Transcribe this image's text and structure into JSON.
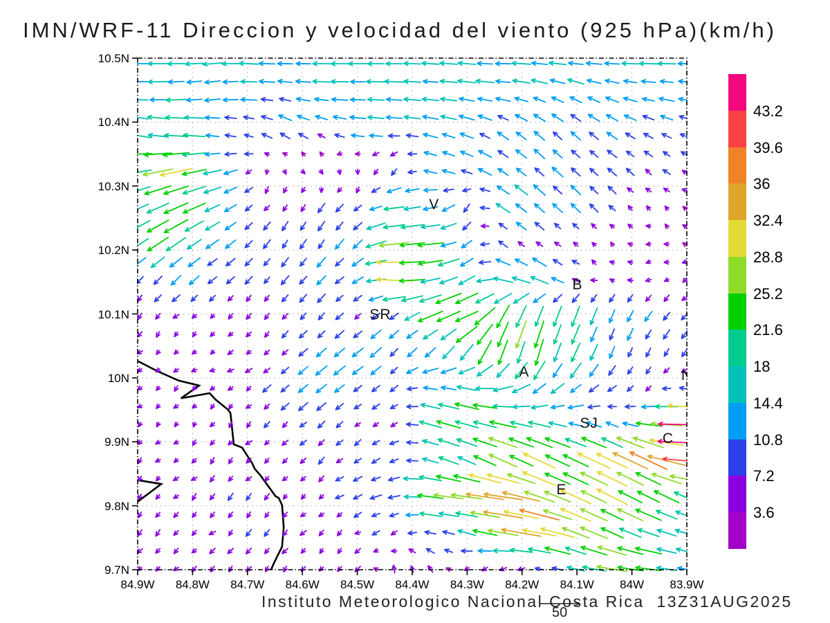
{
  "title": "IMN/WRF-11 Direccion y velocidad del viento (925 hPa)(km/h)",
  "caption": "Instituto Meteorologico Nacional Costa Rica  13Z31AUG2025",
  "chart_data": {
    "type": "vector-field",
    "model": "IMN/WRF-11",
    "variable": "Direccion y velocidad del viento",
    "level": "925 hPa",
    "units": "km/h",
    "valid_time": "13Z31AUG2025",
    "source": "Instituto Meteorologico Nacional Costa Rica",
    "grid_on": true,
    "lon_axis": {
      "min": -84.9,
      "max": -83.9,
      "tick_values": [
        -84.9,
        -84.8,
        -84.7,
        -84.6,
        -84.5,
        -84.4,
        -84.3,
        -84.2,
        -84.1,
        -84.0,
        -83.9
      ],
      "tick_labels": [
        "84.9W",
        "84.8W",
        "84.7W",
        "84.6W",
        "84.5W",
        "84.4W",
        "84.3W",
        "84.2W",
        "84.1W",
        "84W",
        "83.9W"
      ]
    },
    "lat_axis": {
      "min": 9.7,
      "max": 10.5,
      "tick_values": [
        10.5,
        10.4,
        10.3,
        10.2,
        10.1,
        10.0,
        9.9,
        9.8,
        9.7
      ],
      "tick_labels": [
        "10.5N",
        "10.4N",
        "10.3N",
        "10.2N",
        "10.1N",
        "10N",
        "9.9N",
        "9.8N",
        "9.7N"
      ]
    },
    "colorbar": {
      "levels": [
        3.6,
        7.2,
        10.8,
        14.4,
        18,
        21.6,
        25.2,
        28.8,
        32.4,
        36,
        39.6,
        43.2
      ],
      "labels": [
        "3.6",
        "7.2",
        "10.8",
        "14.4",
        "18",
        "21.6",
        "25.2",
        "28.8",
        "32.4",
        "36",
        "39.6",
        "43.2"
      ],
      "colors": [
        "#A300C8",
        "#8A00E0",
        "#2B40E8",
        "#009EF2",
        "#00C2B8",
        "#00CC8E",
        "#00D000",
        "#8EDB2A",
        "#E4DA35",
        "#DFA62B",
        "#F08228",
        "#FA4245",
        "#F2077E"
      ]
    },
    "reference_vector": {
      "label": "50",
      "value": 50
    },
    "cities": [
      {
        "label": "V",
        "lon": -84.36,
        "lat": 10.271
      },
      {
        "label": "SR",
        "lon": -84.458,
        "lat": 10.098
      },
      {
        "label": "B",
        "lon": -84.099,
        "lat": 10.145
      },
      {
        "label": "A",
        "lon": -84.196,
        "lat": 10.009
      },
      {
        "label": "SJ",
        "lon": -84.078,
        "lat": 9.928
      },
      {
        "label": "C",
        "lon": -83.934,
        "lat": 9.905
      },
      {
        "label": "E",
        "lon": -84.128,
        "lat": 9.824
      },
      {
        "label": "N",
        "lon": -83.9,
        "lat": 10.003
      }
    ],
    "coastlines": [
      [
        [
          -84.899,
          10.026
        ],
        [
          -84.863,
          10.01
        ],
        [
          -84.826,
          9.996
        ],
        [
          -84.788,
          9.988
        ],
        [
          -84.821,
          9.968
        ],
        [
          -84.769,
          9.976
        ],
        [
          -84.758,
          9.966
        ],
        [
          -84.735,
          9.95
        ],
        [
          -84.731,
          9.945
        ],
        [
          -84.725,
          9.896
        ],
        [
          -84.71,
          9.891
        ],
        [
          -84.691,
          9.866
        ],
        [
          -84.687,
          9.858
        ],
        [
          -84.676,
          9.847
        ],
        [
          -84.649,
          9.815
        ],
        [
          -84.643,
          9.812
        ],
        [
          -84.637,
          9.801
        ],
        [
          -84.634,
          9.766
        ],
        [
          -84.637,
          9.736
        ],
        [
          -84.652,
          9.71
        ],
        [
          -84.657,
          9.7
        ]
      ],
      [
        [
          -84.899,
          9.84
        ],
        [
          -84.857,
          9.834
        ],
        [
          -84.899,
          9.807
        ]
      ]
    ],
    "wind_grid": {
      "nx": 16,
      "ny": 15,
      "lon_start": -84.9,
      "lon_step": 0.066667,
      "lat_start": 10.5,
      "lat_step": -0.057143,
      "uv": [
        [
          [
            -16,
            0
          ],
          [
            -16,
            0
          ],
          [
            -15,
            -1
          ],
          [
            -16,
            1
          ],
          [
            -14,
            0
          ],
          [
            -15,
            0
          ],
          [
            -16,
            0
          ],
          [
            -15,
            0
          ],
          [
            -16,
            1
          ],
          [
            -15,
            1
          ],
          [
            -16,
            0
          ],
          [
            -15,
            1
          ],
          [
            -16,
            1
          ],
          [
            -15,
            0
          ],
          [
            -15,
            0
          ],
          [
            -14,
            0
          ]
        ],
        [
          [
            -15,
            0
          ],
          [
            -16,
            -1
          ],
          [
            -14,
            -2
          ],
          [
            -13,
            0
          ],
          [
            -12,
            2
          ],
          [
            -13,
            1
          ],
          [
            -15,
            0
          ],
          [
            -15,
            1
          ],
          [
            -14,
            1
          ],
          [
            -14,
            2
          ],
          [
            -13,
            2
          ],
          [
            -12,
            4
          ],
          [
            -11,
            5
          ],
          [
            -12,
            4
          ],
          [
            -13,
            2
          ],
          [
            -12,
            2
          ]
        ],
        [
          [
            -18,
            4
          ],
          [
            -21,
            2
          ],
          [
            -13,
            2
          ],
          [
            -9,
            3
          ],
          [
            -10,
            6
          ],
          [
            -8,
            4
          ],
          [
            -12,
            2
          ],
          [
            -13,
            1
          ],
          [
            -12,
            3
          ],
          [
            -11,
            4
          ],
          [
            -9,
            6
          ],
          [
            -8,
            7
          ],
          [
            -8,
            7
          ],
          [
            -9,
            6
          ],
          [
            -10,
            5
          ],
          [
            -10,
            4
          ]
        ],
        [
          [
            -22,
            -3
          ],
          [
            -26,
            -5
          ],
          [
            -16,
            -3
          ],
          [
            -6,
            -3
          ],
          [
            3,
            -3
          ],
          [
            4,
            -2
          ],
          [
            2,
            -4
          ],
          [
            -3,
            -6
          ],
          [
            -10,
            3
          ],
          [
            -12,
            5
          ],
          [
            -10,
            7
          ],
          [
            -9,
            8
          ],
          [
            -8,
            7
          ],
          [
            -7,
            6
          ],
          [
            -6,
            5
          ],
          [
            -5,
            4
          ]
        ],
        [
          [
            -18,
            -8
          ],
          [
            -22,
            -9
          ],
          [
            -14,
            -6
          ],
          [
            -6,
            -5
          ],
          [
            -4,
            -6
          ],
          [
            -5,
            -7
          ],
          [
            -7,
            -5
          ],
          [
            -16,
            -2
          ],
          [
            -14,
            -3
          ],
          [
            -4,
            -7
          ],
          [
            -12,
            8
          ],
          [
            -10,
            9
          ],
          [
            -8,
            8
          ],
          [
            -6,
            6
          ],
          [
            -4,
            3
          ],
          [
            -3,
            2
          ]
        ],
        [
          [
            -16,
            -10
          ],
          [
            -18,
            -12
          ],
          [
            -12,
            -8
          ],
          [
            -7,
            -7
          ],
          [
            -5,
            -8
          ],
          [
            -6,
            -9
          ],
          [
            -8,
            -8
          ],
          [
            -24,
            -3
          ],
          [
            -22,
            -2
          ],
          [
            -8,
            -6
          ],
          [
            -6,
            5
          ],
          [
            -5,
            4
          ],
          [
            -4,
            3
          ],
          [
            -3,
            2
          ],
          [
            -3,
            1
          ],
          [
            -3,
            2
          ]
        ],
        [
          [
            -6,
            -6
          ],
          [
            -8,
            -8
          ],
          [
            -8,
            -6
          ],
          [
            -6,
            -6
          ],
          [
            -6,
            -7
          ],
          [
            -8,
            -8
          ],
          [
            -10,
            -6
          ],
          [
            -31,
            2
          ],
          [
            -20,
            -4
          ],
          [
            -14,
            -8
          ],
          [
            -18,
            6
          ],
          [
            -15,
            8
          ],
          [
            -6,
            4
          ],
          [
            -4,
            2
          ],
          [
            -4,
            -2
          ],
          [
            -4,
            -3
          ]
        ],
        [
          [
            -3,
            -5
          ],
          [
            -4,
            -4
          ],
          [
            -3,
            -4
          ],
          [
            -4,
            -5
          ],
          [
            -5,
            -5
          ],
          [
            -5,
            -6
          ],
          [
            -6,
            -5
          ],
          [
            -8,
            -6
          ],
          [
            -20,
            -8
          ],
          [
            -24,
            -10
          ],
          [
            -10,
            -18
          ],
          [
            -8,
            -20
          ],
          [
            -6,
            -16
          ],
          [
            -5,
            -12
          ],
          [
            -6,
            -8
          ],
          [
            -6,
            -6
          ]
        ],
        [
          [
            -4,
            -4
          ],
          [
            -3,
            -3
          ],
          [
            -4,
            -3
          ],
          [
            -4,
            -4
          ],
          [
            -6,
            -5
          ],
          [
            -8,
            -7
          ],
          [
            -10,
            -8
          ],
          [
            -8,
            -8
          ],
          [
            -10,
            -10
          ],
          [
            -12,
            -16
          ],
          [
            -8,
            -24
          ],
          [
            -6,
            -22
          ],
          [
            -8,
            -18
          ],
          [
            -4,
            -10
          ],
          [
            -4,
            -8
          ],
          [
            -5,
            -8
          ]
        ],
        [
          [
            -3,
            -3
          ],
          [
            -3,
            -4
          ],
          [
            -4,
            -3
          ],
          [
            -5,
            -4
          ],
          [
            -8,
            -7
          ],
          [
            -10,
            -8
          ],
          [
            -8,
            -6
          ],
          [
            -6,
            -5
          ],
          [
            -14,
            2
          ],
          [
            -16,
            3
          ],
          [
            -15,
            -4
          ],
          [
            -12,
            -10
          ],
          [
            -10,
            -8
          ],
          [
            -6,
            -5
          ],
          [
            -4,
            -4
          ],
          [
            -8,
            2
          ]
        ],
        [
          [
            -3,
            -3
          ],
          [
            -3,
            -3
          ],
          [
            -3,
            -4
          ],
          [
            -4,
            -4
          ],
          [
            -5,
            -5
          ],
          [
            -6,
            -5
          ],
          [
            -5,
            -4
          ],
          [
            -6,
            -3
          ],
          [
            -18,
            5
          ],
          [
            -22,
            6
          ],
          [
            -24,
            5
          ],
          [
            -18,
            4
          ],
          [
            -14,
            3
          ],
          [
            -10,
            4
          ],
          [
            -20,
            2
          ],
          [
            -46,
            1
          ]
        ],
        [
          [
            -3,
            -4
          ],
          [
            -4,
            -3
          ],
          [
            -4,
            -4
          ],
          [
            -4,
            -4
          ],
          [
            -5,
            -4
          ],
          [
            -5,
            -5
          ],
          [
            -6,
            -4
          ],
          [
            -8,
            -3
          ],
          [
            -14,
            4
          ],
          [
            -18,
            8
          ],
          [
            -22,
            10
          ],
          [
            -26,
            12
          ],
          [
            -24,
            11
          ],
          [
            -28,
            13
          ],
          [
            -30,
            14
          ],
          [
            -44,
            3
          ]
        ],
        [
          [
            -3,
            -5
          ],
          [
            -4,
            -4
          ],
          [
            -4,
            -5
          ],
          [
            -5,
            -5
          ],
          [
            -4,
            -4
          ],
          [
            -5,
            -3
          ],
          [
            -8,
            -4
          ],
          [
            -10,
            -2
          ],
          [
            -24,
            3
          ],
          [
            -30,
            4
          ],
          [
            -34,
            5
          ],
          [
            -28,
            10
          ],
          [
            -26,
            12
          ],
          [
            -24,
            12
          ],
          [
            -22,
            11
          ],
          [
            -18,
            8
          ]
        ],
        [
          [
            -4,
            -5
          ],
          [
            -4,
            -5
          ],
          [
            -5,
            -4
          ],
          [
            -4,
            -6
          ],
          [
            -5,
            -5
          ],
          [
            -4,
            -4
          ],
          [
            -5,
            -3
          ],
          [
            -6,
            -4
          ],
          [
            -10,
            2
          ],
          [
            -14,
            4
          ],
          [
            -30,
            5
          ],
          [
            -34,
            6
          ],
          [
            -26,
            10
          ],
          [
            -22,
            10
          ],
          [
            -18,
            6
          ],
          [
            -16,
            5
          ]
        ],
        [
          [
            -3,
            -4
          ],
          [
            -4,
            -4
          ],
          [
            -3,
            -5
          ],
          [
            -4,
            -4
          ],
          [
            -3,
            -5
          ],
          [
            -4,
            -4
          ],
          [
            -4,
            -5
          ],
          [
            -2,
            7
          ],
          [
            -3,
            6
          ],
          [
            -4,
            -4
          ],
          [
            -5,
            -4
          ],
          [
            -8,
            2
          ],
          [
            -14,
            3
          ],
          [
            -26,
            4
          ],
          [
            -24,
            3
          ],
          [
            -12,
            2
          ]
        ]
      ]
    }
  }
}
